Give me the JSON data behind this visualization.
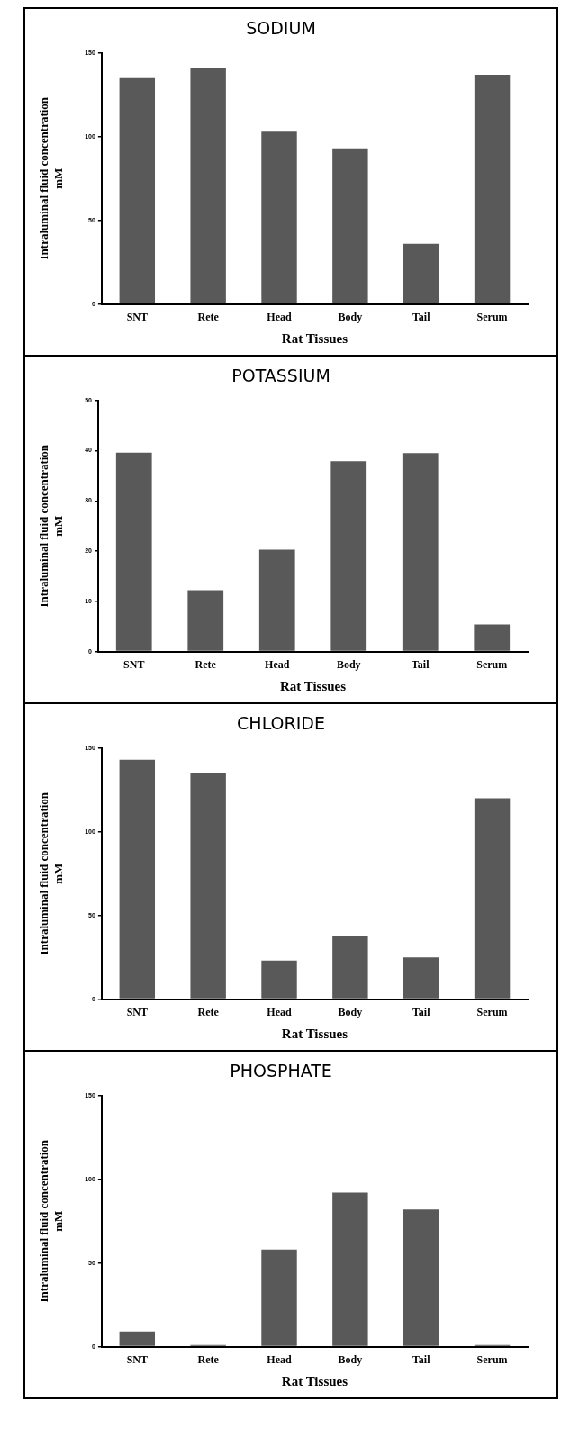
{
  "chart_data": [
    {
      "type": "bar",
      "title": "SODIUM",
      "xlabel": "Rat Tissues",
      "ylabel": "Intraluminal fluid concentration\nmM",
      "categories": [
        "SNT",
        "Rete",
        "Head",
        "Body",
        "Tail",
        "Serum"
      ],
      "values": [
        135,
        141,
        103,
        93,
        36,
        137
      ],
      "color": "#595959",
      "ylim": [
        0,
        150
      ],
      "yticks": [
        0,
        50,
        100,
        150
      ],
      "grid": false,
      "legend": false
    },
    {
      "type": "bar",
      "title": "POTASSIUM",
      "xlabel": "Rat Tissues",
      "ylabel": "Intraluminal fluid concentration\nmM",
      "categories": [
        "SNT",
        "Rete",
        "Head",
        "Body",
        "Tail",
        "Serum"
      ],
      "values": [
        39.6,
        12.2,
        20.3,
        37.9,
        39.5,
        5.4
      ],
      "color": "#595959",
      "ylim": [
        0,
        50
      ],
      "yticks": [
        0,
        10,
        20,
        30,
        40,
        50
      ],
      "grid": false,
      "legend": false
    },
    {
      "type": "bar",
      "title": "CHLORIDE",
      "xlabel": "Rat Tissues",
      "ylabel": "Intraluminal fluid concentration\nmM",
      "categories": [
        "SNT",
        "Rete",
        "Head",
        "Body",
        "Tail",
        "Serum"
      ],
      "values": [
        143,
        135,
        23,
        38,
        25,
        120
      ],
      "color": "#595959",
      "ylim": [
        0,
        150
      ],
      "yticks": [
        0,
        50,
        100,
        150
      ],
      "grid": false,
      "legend": false
    },
    {
      "type": "bar",
      "title": "PHOSPHATE",
      "xlabel": "Rat Tissues",
      "ylabel": "Intraluminal fluid concentration\nmM",
      "categories": [
        "SNT",
        "Rete",
        "Head",
        "Body",
        "Tail",
        "Serum"
      ],
      "values": [
        9,
        1,
        58,
        92,
        82,
        1
      ],
      "color": "#595959",
      "ylim": [
        0,
        150
      ],
      "yticks": [
        0,
        50,
        100,
        150
      ],
      "grid": false,
      "legend": false
    }
  ]
}
